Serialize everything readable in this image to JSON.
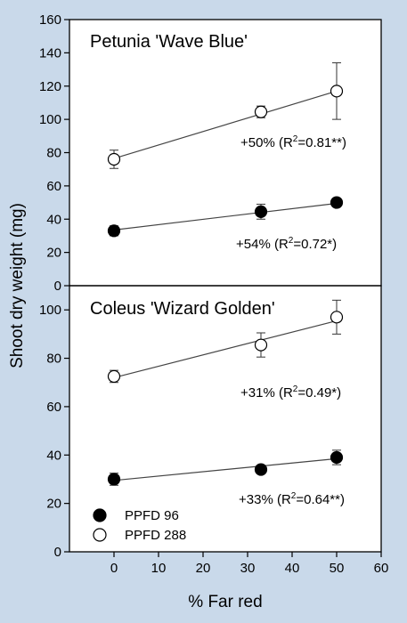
{
  "chart_data": {
    "type": "scatter",
    "xlabel": "% Far red",
    "ylabel": "Shoot dry weight (mg)",
    "xlim": [
      -10,
      60
    ],
    "x_ticks": [
      0,
      10,
      20,
      30,
      40,
      50,
      60
    ],
    "grid": false,
    "legend": [
      {
        "label": "PPFD 96",
        "marker": "filled-circle"
      },
      {
        "label": "PPFD 288",
        "marker": "open-circle"
      }
    ],
    "legend_placement": "bottom-left of lower panel",
    "colors": {
      "background": "#c9d9ea",
      "plot_area": "#ffffff",
      "ink": "#000000",
      "regression_line": "#444444"
    },
    "panels": [
      {
        "title": "Petunia 'Wave Blue'",
        "ylim": [
          0,
          160
        ],
        "y_ticks": [
          0,
          20,
          40,
          60,
          80,
          100,
          120,
          140,
          160
        ],
        "series": [
          {
            "legend_label": "PPFD 96",
            "marker": "filled",
            "x": [
              0,
              33,
              50
            ],
            "y": [
              33,
              44.5,
              50
            ],
            "err": [
              3,
              4.5,
              2
            ],
            "fit": [
              33.5,
              49.5
            ],
            "annotation": {
              "pre": "+54% (R",
              "sup": "2",
              "post": "=0.72*)"
            }
          },
          {
            "legend_label": "PPFD 288",
            "marker": "open",
            "x": [
              0,
              33,
              50
            ],
            "y": [
              76,
              104.5,
              117
            ],
            "err": [
              5.5,
              3.5,
              17
            ],
            "fit": [
              76.5,
              117
            ],
            "annotation": {
              "pre": "+50% (R",
              "sup": "2",
              "post": "=0.81**)"
            }
          }
        ]
      },
      {
        "title": "Coleus 'Wizard Golden'",
        "ylim": [
          0,
          110
        ],
        "y_ticks": [
          0,
          20,
          40,
          60,
          80,
          100
        ],
        "series": [
          {
            "legend_label": "PPFD 96",
            "marker": "filled",
            "x": [
              0,
              33,
              50
            ],
            "y": [
              30,
              34,
              39
            ],
            "err": [
              2.5,
              1.5,
              3
            ],
            "fit": [
              29.5,
              38.5
            ],
            "annotation": {
              "pre": "+33% (R",
              "sup": "2",
              "post": "=0.64**)"
            }
          },
          {
            "legend_label": "PPFD 288",
            "marker": "open",
            "x": [
              0,
              33,
              50
            ],
            "y": [
              72.5,
              85.5,
              97
            ],
            "err": [
              2.5,
              5,
              7
            ],
            "fit": [
              72,
              95.5
            ],
            "annotation": {
              "pre": "+31% (R",
              "sup": "2",
              "post": "=0.49*)"
            }
          }
        ]
      }
    ]
  }
}
